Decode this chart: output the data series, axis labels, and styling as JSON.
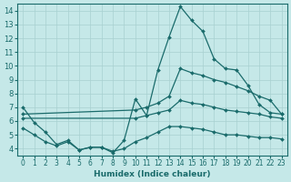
{
  "xlabel": "Humidex (Indice chaleur)",
  "bg_color": "#c5e8e8",
  "grid_color": "#a8d0d0",
  "line_color": "#1a6b6b",
  "xlim": [
    -0.5,
    23.5
  ],
  "ylim": [
    3.5,
    14.5
  ],
  "xticks": [
    0,
    1,
    2,
    3,
    4,
    5,
    6,
    7,
    8,
    9,
    10,
    11,
    12,
    13,
    14,
    15,
    16,
    17,
    18,
    19,
    20,
    21,
    22,
    23
  ],
  "yticks": [
    4,
    5,
    6,
    7,
    8,
    9,
    10,
    11,
    12,
    13,
    14
  ],
  "curve1_x": [
    0,
    1,
    2,
    3,
    4,
    5,
    6,
    7,
    8,
    9,
    10,
    11,
    12,
    13,
    14,
    15,
    16,
    17,
    18,
    19,
    20,
    21,
    22,
    23
  ],
  "curve1_y": [
    7.0,
    5.9,
    5.2,
    4.3,
    4.6,
    3.9,
    4.1,
    4.1,
    3.7,
    4.6,
    7.6,
    6.4,
    9.7,
    12.1,
    14.3,
    13.3,
    12.5,
    10.5,
    9.8,
    9.7,
    8.6,
    7.2,
    6.6,
    6.5
  ],
  "curve2_x": [
    0,
    10,
    11,
    12,
    13,
    14,
    15,
    16,
    17,
    18,
    19,
    20,
    21,
    22,
    23
  ],
  "curve2_y": [
    6.5,
    6.8,
    7.0,
    7.3,
    7.8,
    9.8,
    9.5,
    9.3,
    9.0,
    8.8,
    8.5,
    8.2,
    7.8,
    7.5,
    6.5
  ],
  "curve3_x": [
    0,
    10,
    11,
    12,
    13,
    14,
    15,
    16,
    17,
    18,
    19,
    20,
    21,
    22,
    23
  ],
  "curve3_y": [
    6.2,
    6.2,
    6.4,
    6.6,
    6.8,
    7.5,
    7.3,
    7.2,
    7.0,
    6.8,
    6.7,
    6.6,
    6.5,
    6.3,
    6.2
  ],
  "curve4_x": [
    0,
    1,
    2,
    3,
    4,
    5,
    6,
    7,
    8,
    9,
    10,
    11,
    12,
    13,
    14,
    15,
    16,
    17,
    18,
    19,
    20,
    21,
    22,
    23
  ],
  "curve4_y": [
    5.5,
    5.0,
    4.5,
    4.2,
    4.5,
    3.9,
    4.1,
    4.1,
    3.8,
    4.0,
    4.5,
    4.8,
    5.2,
    5.6,
    5.6,
    5.5,
    5.4,
    5.2,
    5.0,
    5.0,
    4.9,
    4.8,
    4.8,
    4.7
  ]
}
